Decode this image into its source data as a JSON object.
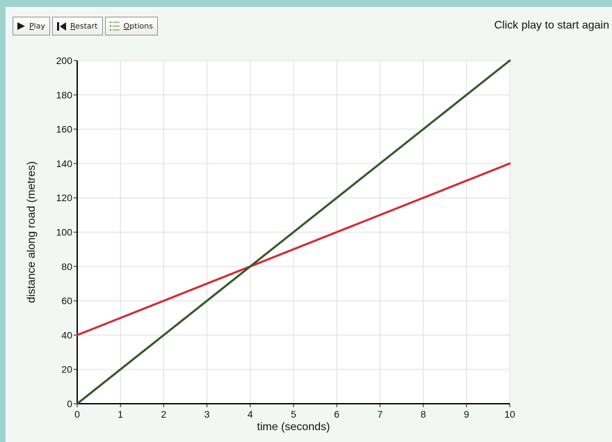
{
  "toolbar": {
    "play_label": "Play",
    "restart_label": "Restart",
    "options_label": "Options"
  },
  "status_text": "Click play to start again",
  "colors": {
    "background": "#9fd3cd",
    "panel": "#f2f7f4",
    "series_red": "#d42a33",
    "series_green": "#345a26"
  },
  "chart_data": {
    "type": "line",
    "title": "",
    "xlabel": "time (seconds)",
    "ylabel": "distance along road (metres)",
    "xlim": [
      0,
      10
    ],
    "ylim": [
      0,
      200
    ],
    "x_ticks": [
      0,
      1,
      2,
      3,
      4,
      5,
      6,
      7,
      8,
      9,
      10
    ],
    "y_ticks": [
      0,
      20,
      40,
      60,
      80,
      100,
      120,
      140,
      160,
      180,
      200
    ],
    "grid": true,
    "series": [
      {
        "color": "#d42a33",
        "x": [
          0,
          10
        ],
        "y": [
          40,
          140
        ]
      },
      {
        "color": "#345a26",
        "x": [
          0,
          10
        ],
        "y": [
          0,
          200
        ]
      }
    ]
  }
}
